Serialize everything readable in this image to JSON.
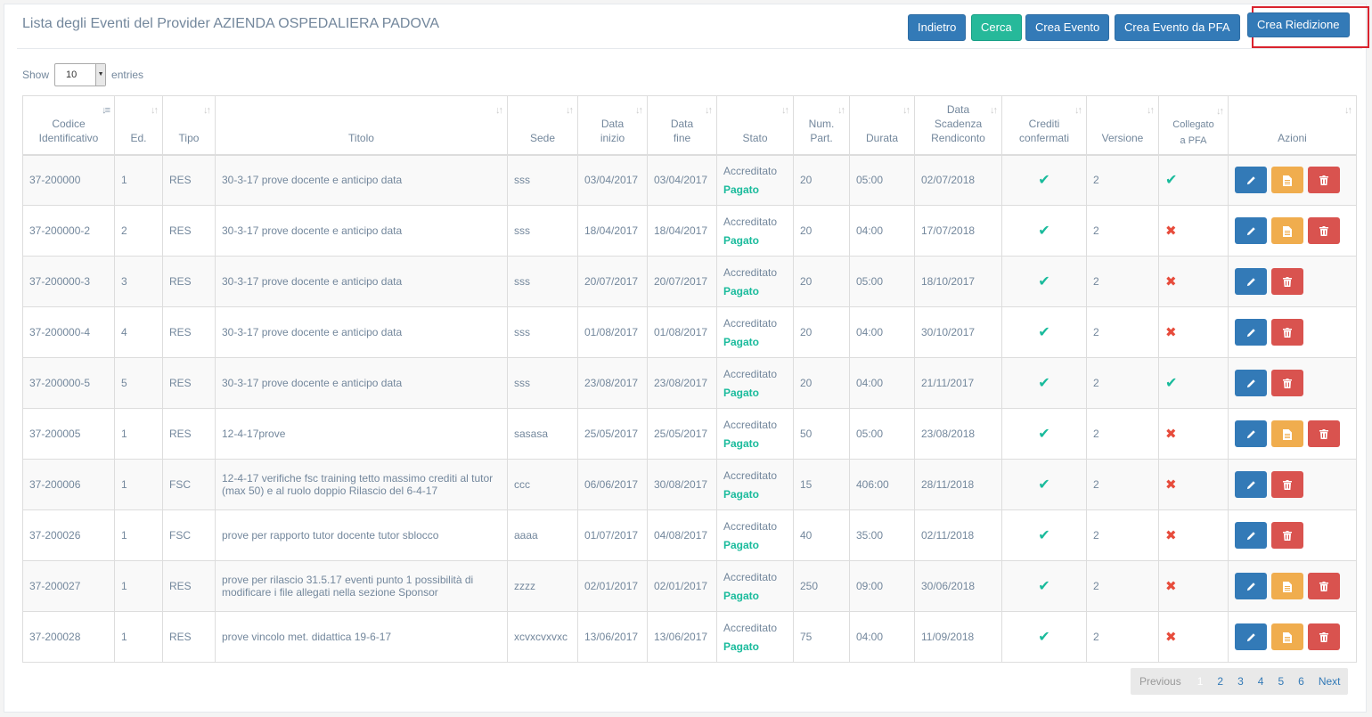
{
  "header": {
    "title": "Lista degli Eventi del Provider AZIENDA OSPEDALIERA PADOVA",
    "buttons": {
      "back": "Indietro",
      "search": "Cerca",
      "create": "Crea Evento",
      "create_pfa": "Crea Evento da PFA",
      "reedition": "Crea Riedizione"
    }
  },
  "length": {
    "show": "Show",
    "value": "10",
    "entries": "entries"
  },
  "columns": {
    "codice": [
      "Codice",
      "Identificativo"
    ],
    "ed": "Ed.",
    "tipo": "Tipo",
    "titolo": "Titolo",
    "sede": "Sede",
    "data_inizio": [
      "Data",
      "inizio"
    ],
    "data_fine": [
      "Data",
      "fine"
    ],
    "stato": "Stato",
    "num_part": [
      "Num.",
      "Part."
    ],
    "durata": "Durata",
    "scadenza": [
      "Data",
      "Scadenza",
      "Rendiconto"
    ],
    "crediti": [
      "Crediti",
      "confermati"
    ],
    "versione": "Versione",
    "collegato": [
      "Collegato",
      "a PFA"
    ],
    "azioni": "Azioni"
  },
  "rows": [
    {
      "codice": "37-200000",
      "ed": "1",
      "tipo": "RES",
      "titolo": "30-3-17 prove docente e anticipo data",
      "sede": "sss",
      "inizio": "03/04/2017",
      "fine": "03/04/2017",
      "stato": "Accreditato",
      "pagamento": "Pagato",
      "part": "20",
      "durata": "05:00",
      "scadenza": "02/07/2018",
      "versione": "2",
      "pfa": true,
      "doc": true
    },
    {
      "codice": "37-200000-2",
      "ed": "2",
      "tipo": "RES",
      "titolo": "30-3-17 prove docente e anticipo data",
      "sede": "sss",
      "inizio": "18/04/2017",
      "fine": "18/04/2017",
      "stato": "Accreditato",
      "pagamento": "Pagato",
      "part": "20",
      "durata": "04:00",
      "scadenza": "17/07/2018",
      "versione": "2",
      "pfa": false,
      "doc": true
    },
    {
      "codice": "37-200000-3",
      "ed": "3",
      "tipo": "RES",
      "titolo": "30-3-17 prove docente e anticipo data",
      "sede": "sss",
      "inizio": "20/07/2017",
      "fine": "20/07/2017",
      "stato": "Accreditato",
      "pagamento": "Pagato",
      "part": "20",
      "durata": "05:00",
      "scadenza": "18/10/2017",
      "versione": "2",
      "pfa": false,
      "doc": false
    },
    {
      "codice": "37-200000-4",
      "ed": "4",
      "tipo": "RES",
      "titolo": "30-3-17 prove docente e anticipo data",
      "sede": "sss",
      "inizio": "01/08/2017",
      "fine": "01/08/2017",
      "stato": "Accreditato",
      "pagamento": "Pagato",
      "part": "20",
      "durata": "04:00",
      "scadenza": "30/10/2017",
      "versione": "2",
      "pfa": false,
      "doc": false
    },
    {
      "codice": "37-200000-5",
      "ed": "5",
      "tipo": "RES",
      "titolo": "30-3-17 prove docente e anticipo data",
      "sede": "sss",
      "inizio": "23/08/2017",
      "fine": "23/08/2017",
      "stato": "Accreditato",
      "pagamento": "Pagato",
      "part": "20",
      "durata": "04:00",
      "scadenza": "21/11/2017",
      "versione": "2",
      "pfa": true,
      "doc": false
    },
    {
      "codice": "37-200005",
      "ed": "1",
      "tipo": "RES",
      "titolo": "12-4-17prove",
      "sede": "sasasa",
      "inizio": "25/05/2017",
      "fine": "25/05/2017",
      "stato": "Accreditato",
      "pagamento": "Pagato",
      "part": "50",
      "durata": "05:00",
      "scadenza": "23/08/2018",
      "versione": "2",
      "pfa": false,
      "doc": true
    },
    {
      "codice": "37-200006",
      "ed": "1",
      "tipo": "FSC",
      "titolo": "12-4-17 verifiche fsc training tetto massimo crediti al tutor (max 50) e al ruolo doppio Rilascio del 6-4-17",
      "sede": "ccc",
      "inizio": "06/06/2017",
      "fine": "30/08/2017",
      "stato": "Accreditato",
      "pagamento": "Pagato",
      "part": "15",
      "durata": "406:00",
      "scadenza": "28/11/2018",
      "versione": "2",
      "pfa": false,
      "doc": false
    },
    {
      "codice": "37-200026",
      "ed": "1",
      "tipo": "FSC",
      "titolo": "prove per rapporto tutor docente tutor sblocco",
      "sede": "aaaa",
      "inizio": "01/07/2017",
      "fine": "04/08/2017",
      "stato": "Accreditato",
      "pagamento": "Pagato",
      "part": "40",
      "durata": "35:00",
      "scadenza": "02/11/2018",
      "versione": "2",
      "pfa": false,
      "doc": false
    },
    {
      "codice": "37-200027",
      "ed": "1",
      "tipo": "RES",
      "titolo": "prove per rilascio 31.5.17 eventi punto 1 possibilità di modificare i file allegati nella sezione Sponsor",
      "sede": "zzzz",
      "inizio": "02/01/2017",
      "fine": "02/01/2017",
      "stato": "Accreditato",
      "pagamento": "Pagato",
      "part": "250",
      "durata": "09:00",
      "scadenza": "30/06/2018",
      "versione": "2",
      "pfa": false,
      "doc": true
    },
    {
      "codice": "37-200028",
      "ed": "1",
      "tipo": "RES",
      "titolo": "prove vincolo met. didattica 19-6-17",
      "sede": "xcvxcvxvxc",
      "inizio": "13/06/2017",
      "fine": "13/06/2017",
      "stato": "Accreditato",
      "pagamento": "Pagato",
      "part": "75",
      "durata": "04:00",
      "scadenza": "11/09/2018",
      "versione": "2",
      "pfa": false,
      "doc": true
    }
  ],
  "pagination": {
    "previous": "Previous",
    "pages": [
      "1",
      "2",
      "3",
      "4",
      "5",
      "6"
    ],
    "current": "1",
    "next": "Next"
  },
  "colors": {
    "primary": "#337ab7",
    "success": "#26B99A",
    "warning": "#f0ad4e",
    "danger": "#d9534f",
    "highlight": "#d9232e"
  }
}
